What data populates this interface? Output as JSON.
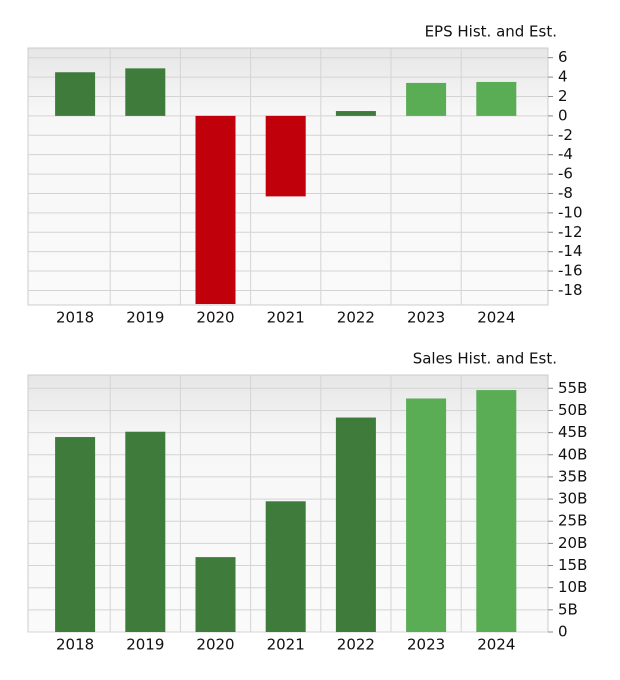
{
  "chart_data": [
    {
      "type": "bar",
      "title": "EPS Hist. and Est.",
      "categories": [
        "2018",
        "2019",
        "2020",
        "2021",
        "2022",
        "2023",
        "2024"
      ],
      "values": [
        4.5,
        4.9,
        -19.4,
        -8.3,
        0.5,
        3.4,
        3.5
      ],
      "colors": [
        "#3f7b3b",
        "#3f7b3b",
        "#c0000a",
        "#c0000a",
        "#3f7b3b",
        "#5aac55",
        "#5aac55"
      ],
      "ylim": [
        -19.5,
        7
      ],
      "yticks": [
        6,
        4,
        2,
        0,
        -2,
        -4,
        -6,
        -8,
        -10,
        -12,
        -14,
        -16,
        -18
      ],
      "grid": true
    },
    {
      "type": "bar",
      "title": "Sales Hist. and Est.",
      "categories": [
        "2018",
        "2019",
        "2020",
        "2021",
        "2022",
        "2023",
        "2024"
      ],
      "values": [
        44,
        45.2,
        16.9,
        29.5,
        48.4,
        52.7,
        54.6
      ],
      "colors": [
        "#3f7b3b",
        "#3f7b3b",
        "#3f7b3b",
        "#3f7b3b",
        "#3f7b3b",
        "#5aac55",
        "#5aac55"
      ],
      "ylim": [
        0,
        58
      ],
      "yticks": [
        {
          "value": 55,
          "label": "55B"
        },
        {
          "value": 50,
          "label": "50B"
        },
        {
          "value": 45,
          "label": "45B"
        },
        {
          "value": 40,
          "label": "40B"
        },
        {
          "value": 35,
          "label": "35B"
        },
        {
          "value": 30,
          "label": "30B"
        },
        {
          "value": 25,
          "label": "25B"
        },
        {
          "value": 20,
          "label": "20B"
        },
        {
          "value": 15,
          "label": "15B"
        },
        {
          "value": 10,
          "label": "10B"
        },
        {
          "value": 5,
          "label": "5B"
        },
        0
      ],
      "grid": true
    }
  ]
}
